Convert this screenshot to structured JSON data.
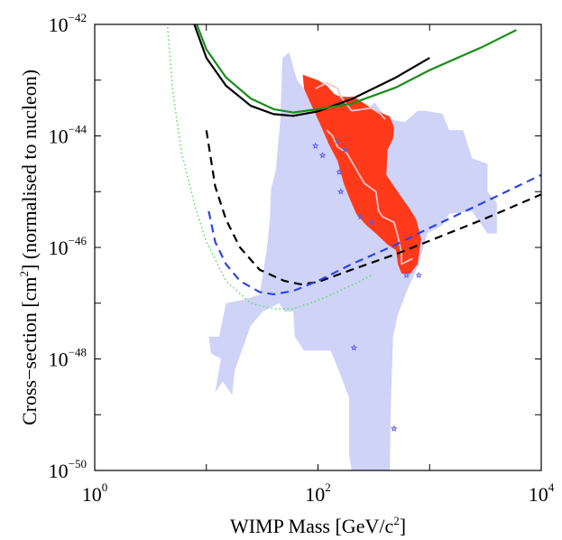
{
  "chart_data": {
    "type": "line",
    "title": "",
    "xlabel": "WIMP Mass [GeV/c",
    "xlabel_sup": "2",
    "xlabel_end": "]",
    "ylabel": "Cross−section [cm",
    "ylabel_sup": "2",
    "ylabel_end": "] (normalised to nucleon)",
    "xscale": "log",
    "yscale": "log",
    "xlim": [
      1,
      10000
    ],
    "ylim": [
      1e-50,
      1e-42
    ],
    "grid": false,
    "legend": "none",
    "x_ticks": [
      {
        "base": "10",
        "exp": "0",
        "value": 1
      },
      {
        "base": "10",
        "exp": "2",
        "value": 100
      },
      {
        "base": "10",
        "exp": "4",
        "value": 10000
      }
    ],
    "y_ticks": [
      {
        "base": "10",
        "exp": "−50",
        "value": -50
      },
      {
        "base": "10",
        "exp": "−48",
        "value": -48
      },
      {
        "base": "10",
        "exp": "−46",
        "value": -46
      },
      {
        "base": "10",
        "exp": "−44",
        "value": -44
      },
      {
        "base": "10",
        "exp": "−42",
        "value": -42
      }
    ],
    "colors": {
      "region_light": "#cfd3f8",
      "region_red": "#ff3a1a",
      "contour": "#f3c3c9",
      "black": "#000000",
      "green": "#1a8c1a",
      "green_light": "#5fe05f",
      "blue": "#2a46e6",
      "stars": "#5a5ae6"
    },
    "series": [
      {
        "style": "solid",
        "color": "black",
        "points": [
          [
            7.8,
            -42
          ],
          [
            10,
            -42.6
          ],
          [
            15,
            -43.1
          ],
          [
            25,
            -43.46
          ],
          [
            40,
            -43.61
          ],
          [
            60,
            -43.64
          ],
          [
            100,
            -43.56
          ],
          [
            200,
            -43.34
          ],
          [
            500,
            -42.95
          ],
          [
            1000,
            -42.6
          ]
        ]
      },
      {
        "style": "solid",
        "color": "green",
        "points": [
          [
            8.2,
            -42
          ],
          [
            10,
            -42.45
          ],
          [
            15,
            -42.95
          ],
          [
            25,
            -43.33
          ],
          [
            40,
            -43.52
          ],
          [
            60,
            -43.58
          ],
          [
            100,
            -43.52
          ],
          [
            200,
            -43.42
          ],
          [
            500,
            -43.13
          ],
          [
            1000,
            -42.82
          ],
          [
            3000,
            -42.4
          ],
          [
            6000,
            -42.1
          ]
        ]
      },
      {
        "style": "dashed",
        "color": "black",
        "points": [
          [
            10,
            -43.9
          ],
          [
            12,
            -44.9
          ],
          [
            15,
            -45.5
          ],
          [
            20,
            -46.0
          ],
          [
            30,
            -46.4
          ],
          [
            50,
            -46.6
          ],
          [
            70,
            -46.66
          ],
          [
            100,
            -46.62
          ],
          [
            200,
            -46.4
          ],
          [
            500,
            -46.12
          ],
          [
            1000,
            -45.88
          ],
          [
            3000,
            -45.5
          ],
          [
            10000,
            -45.05
          ]
        ]
      },
      {
        "style": "dashed",
        "color": "blue",
        "points": [
          [
            10.5,
            -45.35
          ],
          [
            12,
            -45.9
          ],
          [
            15,
            -46.3
          ],
          [
            20,
            -46.6
          ],
          [
            30,
            -46.8
          ],
          [
            40,
            -46.84
          ],
          [
            60,
            -46.78
          ],
          [
            100,
            -46.6
          ],
          [
            200,
            -46.3
          ],
          [
            500,
            -45.95
          ],
          [
            1000,
            -45.65
          ],
          [
            3000,
            -45.2
          ],
          [
            10000,
            -44.7
          ]
        ]
      },
      {
        "style": "dotted",
        "color": "green_light",
        "points": [
          [
            4.5,
            -42.05
          ],
          [
            5,
            -43.2
          ],
          [
            6,
            -44.3
          ],
          [
            8,
            -45.3
          ],
          [
            10,
            -45.9
          ],
          [
            15,
            -46.6
          ],
          [
            25,
            -47.0
          ],
          [
            40,
            -47.1
          ],
          [
            60,
            -47.1
          ],
          [
            100,
            -46.95
          ],
          [
            200,
            -46.68
          ],
          [
            300,
            -46.5
          ]
        ]
      }
    ],
    "regions": [
      {
        "color": "region_light",
        "points": [
          [
            10.5,
            -47.6
          ],
          [
            13,
            -47.6
          ],
          [
            15,
            -47.0
          ],
          [
            20,
            -46.95
          ],
          [
            30,
            -46.85
          ],
          [
            35,
            -46.0
          ],
          [
            37,
            -45.5
          ],
          [
            38,
            -44.95
          ],
          [
            42,
            -44.6
          ],
          [
            46,
            -43.7
          ],
          [
            48,
            -42.6
          ],
          [
            55,
            -42.5
          ],
          [
            65,
            -43.0
          ],
          [
            85,
            -43.3
          ],
          [
            110,
            -43.2
          ],
          [
            150,
            -43.9
          ],
          [
            200,
            -43.8
          ],
          [
            260,
            -43.6
          ],
          [
            320,
            -43.4
          ],
          [
            420,
            -43.7
          ],
          [
            600,
            -43.75
          ],
          [
            780,
            -43.55
          ],
          [
            900,
            -43.55
          ],
          [
            1300,
            -43.6
          ],
          [
            1500,
            -43.9
          ],
          [
            2000,
            -43.9
          ],
          [
            2400,
            -44.4
          ],
          [
            3300,
            -44.5
          ],
          [
            3300,
            -45.0
          ],
          [
            4000,
            -45.2
          ],
          [
            4000,
            -45.75
          ],
          [
            3300,
            -45.75
          ],
          [
            2400,
            -45.35
          ],
          [
            1500,
            -45.4
          ],
          [
            1300,
            -45.6
          ],
          [
            950,
            -45.75
          ],
          [
            800,
            -46.3
          ],
          [
            620,
            -46.8
          ],
          [
            520,
            -47.2
          ],
          [
            470,
            -47.6
          ],
          [
            450,
            -48.8
          ],
          [
            440,
            -50
          ],
          [
            200,
            -50
          ],
          [
            190,
            -49.7
          ],
          [
            190,
            -48.7
          ],
          [
            160,
            -48.3
          ],
          [
            130,
            -47.85
          ],
          [
            75,
            -47.85
          ],
          [
            62,
            -47.6
          ],
          [
            60,
            -47.15
          ],
          [
            50,
            -47.15
          ],
          [
            45,
            -47.0
          ],
          [
            32,
            -47.15
          ],
          [
            25,
            -47.4
          ],
          [
            18,
            -48.2
          ],
          [
            17,
            -48.65
          ],
          [
            14,
            -48.4
          ],
          [
            12,
            -48.6
          ],
          [
            13.5,
            -48.0
          ],
          [
            11,
            -47.9
          ]
        ]
      },
      {
        "color": "region_red",
        "points": [
          [
            73,
            -42.9
          ],
          [
            85,
            -42.95
          ],
          [
            100,
            -43.0
          ],
          [
            120,
            -43.1
          ],
          [
            140,
            -43.25
          ],
          [
            160,
            -43.3
          ],
          [
            210,
            -43.3
          ],
          [
            300,
            -43.5
          ],
          [
            380,
            -43.6
          ],
          [
            440,
            -43.65
          ],
          [
            480,
            -43.85
          ],
          [
            470,
            -44.05
          ],
          [
            420,
            -44.25
          ],
          [
            410,
            -44.7
          ],
          [
            560,
            -45.1
          ],
          [
            660,
            -45.3
          ],
          [
            760,
            -45.5
          ],
          [
            840,
            -45.85
          ],
          [
            780,
            -46.3
          ],
          [
            670,
            -46.47
          ],
          [
            560,
            -46.47
          ],
          [
            520,
            -46.3
          ],
          [
            500,
            -46.05
          ],
          [
            420,
            -45.95
          ],
          [
            330,
            -45.75
          ],
          [
            270,
            -45.6
          ],
          [
            220,
            -45.4
          ],
          [
            190,
            -45.1
          ],
          [
            170,
            -44.85
          ],
          [
            150,
            -44.45
          ],
          [
            125,
            -44.15
          ],
          [
            108,
            -43.85
          ],
          [
            85,
            -43.4
          ],
          [
            75,
            -43.15
          ]
        ]
      }
    ],
    "contours": [
      {
        "points": [
          [
            95,
            -43.15
          ],
          [
            120,
            -43.05
          ],
          [
            150,
            -43.15
          ],
          [
            160,
            -43.3
          ],
          [
            200,
            -43.55
          ],
          [
            300,
            -43.5
          ],
          [
            360,
            -43.6
          ],
          [
            400,
            -43.7
          ]
        ]
      },
      {
        "points": [
          [
            120,
            -43.9
          ],
          [
            135,
            -44.0
          ],
          [
            150,
            -44.2
          ],
          [
            180,
            -44.3
          ],
          [
            220,
            -44.6
          ],
          [
            260,
            -44.85
          ],
          [
            330,
            -45.0
          ],
          [
            350,
            -45.35
          ],
          [
            380,
            -45.45
          ],
          [
            480,
            -45.55
          ],
          [
            520,
            -45.8
          ],
          [
            560,
            -46.1
          ],
          [
            560,
            -46.3
          ],
          [
            700,
            -46.2
          ]
        ]
      }
    ],
    "markers": [
      {
        "shape": "star",
        "x": 95,
        "y": -44.18
      },
      {
        "shape": "star",
        "x": 110,
        "y": -44.35
      },
      {
        "shape": "star",
        "x": 150,
        "y": -44.08
      },
      {
        "shape": "star",
        "x": 175,
        "y": -44.25
      },
      {
        "shape": "star",
        "x": 155,
        "y": -44.65
      },
      {
        "shape": "star",
        "x": 160,
        "y": -45.0
      },
      {
        "shape": "star",
        "x": 240,
        "y": -45.45
      },
      {
        "shape": "star",
        "x": 300,
        "y": -45.55
      },
      {
        "shape": "star",
        "x": 620,
        "y": -46.5
      },
      {
        "shape": "star",
        "x": 800,
        "y": -46.5
      },
      {
        "shape": "star",
        "x": 210,
        "y": -47.8
      },
      {
        "shape": "star",
        "x": 480,
        "y": -49.25
      }
    ]
  }
}
